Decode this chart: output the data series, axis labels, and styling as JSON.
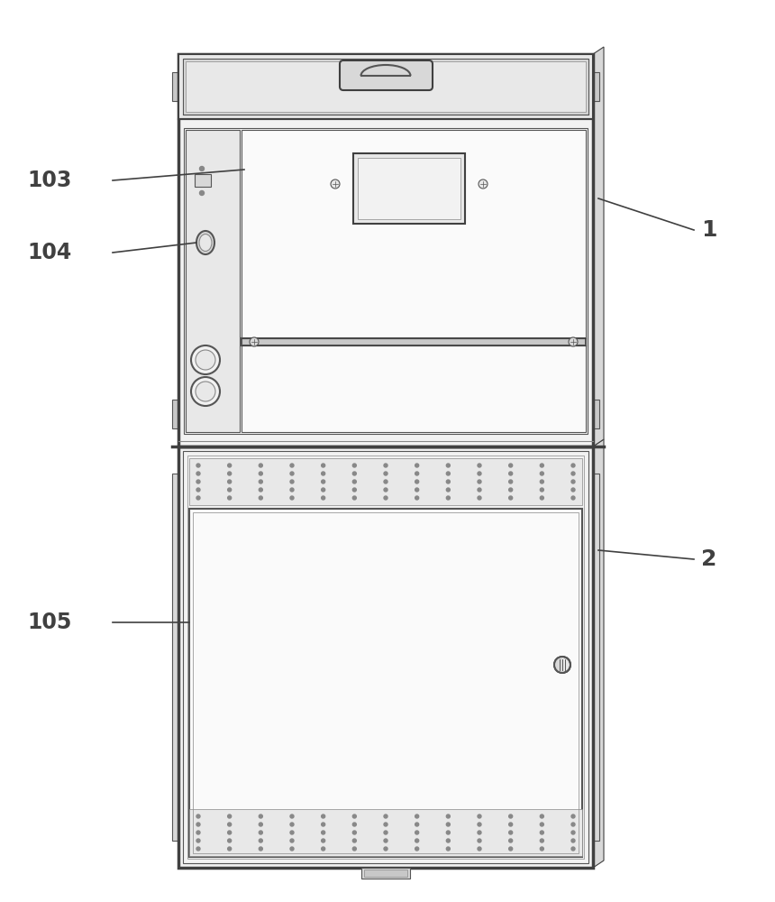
{
  "bg_color": "#ffffff",
  "lc": "#404040",
  "lc2": "#555555",
  "lc_light": "#888888",
  "lc_xlight": "#aaaaaa",
  "fill_white": "#fafafa",
  "fill_light": "#f2f2f2",
  "fill_med": "#e8e8e8",
  "fill_dark": "#d8d8d8",
  "fill_darker": "#c8c8c8"
}
